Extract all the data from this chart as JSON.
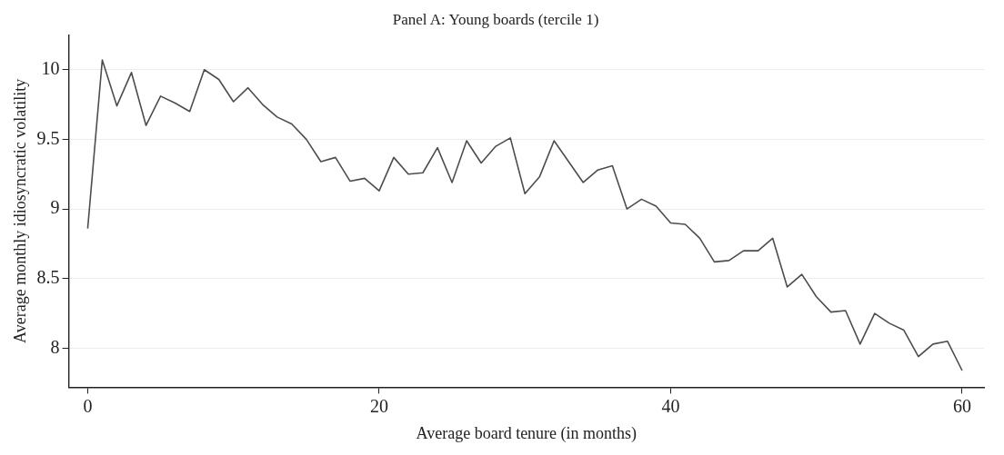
{
  "chart_data": {
    "type": "line",
    "title": "Panel A: Young boards (tercile 1)",
    "xlabel": "Average board tenure (in months)",
    "ylabel": "Average monthly idiosyncratic volatility",
    "x": [
      0,
      1,
      2,
      3,
      4,
      5,
      6,
      7,
      8,
      9,
      10,
      11,
      12,
      13,
      14,
      15,
      16,
      17,
      18,
      19,
      20,
      21,
      22,
      23,
      24,
      25,
      26,
      27,
      28,
      29,
      30,
      31,
      32,
      33,
      34,
      35,
      36,
      37,
      38,
      39,
      40,
      41,
      42,
      43,
      44,
      45,
      46,
      47,
      48,
      49,
      50,
      51,
      52,
      53,
      54,
      55,
      56,
      57,
      58,
      59,
      60
    ],
    "series": [
      {
        "color": "#4d4d4d",
        "values": [
          8.86,
          10.07,
          9.74,
          9.98,
          9.6,
          9.81,
          9.76,
          9.7,
          10.0,
          9.93,
          9.77,
          9.87,
          9.75,
          9.66,
          9.61,
          9.5,
          9.34,
          9.37,
          9.2,
          9.22,
          9.13,
          9.37,
          9.25,
          9.26,
          9.44,
          9.19,
          9.49,
          9.33,
          9.45,
          9.51,
          9.11,
          9.23,
          9.49,
          9.34,
          9.19,
          9.28,
          9.31,
          9.0,
          9.07,
          9.02,
          8.9,
          8.89,
          8.79,
          8.62,
          8.63,
          8.7,
          8.7,
          8.79,
          8.44,
          8.53,
          8.37,
          8.26,
          8.27,
          8.03,
          8.25,
          8.18,
          8.13,
          7.94,
          8.03,
          8.05,
          7.84
        ]
      }
    ],
    "xlim": [
      -1.3,
      61.5
    ],
    "ylim": [
      7.72,
      10.25
    ],
    "xticks": [
      0,
      20,
      40,
      60
    ],
    "yticks": [
      8,
      8.5,
      9,
      9.5,
      10
    ],
    "grid": "y",
    "legend": false,
    "marker": "none",
    "line_style": "solid"
  }
}
